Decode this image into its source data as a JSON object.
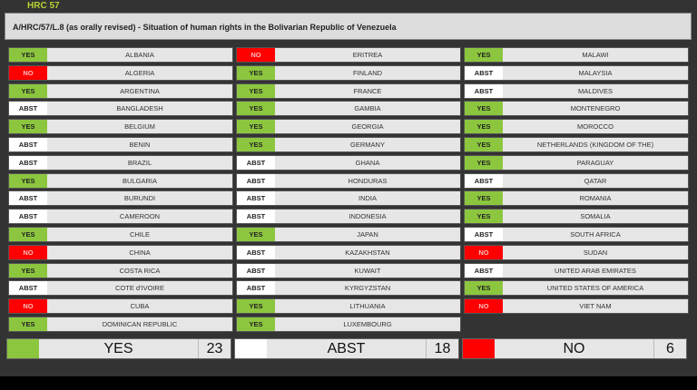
{
  "session": "HRC 57",
  "title": "A/HRC/57/L.8 (as orally revised) - Situation of human rights in the Bolivarian Republic of Venezuela",
  "colors": {
    "YES": "#8cc63f",
    "ABST": "#ffffff",
    "NO": "#ff0000"
  },
  "columns": [
    [
      [
        "YES",
        "ALBANIA"
      ],
      [
        "NO",
        "ALGERIA"
      ],
      [
        "YES",
        "ARGENTINA"
      ],
      [
        "ABST",
        "BANGLADESH"
      ],
      [
        "YES",
        "BELGIUM"
      ],
      [
        "ABST",
        "BENIN"
      ],
      [
        "ABST",
        "BRAZIL"
      ],
      [
        "YES",
        "BULGARIA"
      ],
      [
        "ABST",
        "BURUNDI"
      ],
      [
        "ABST",
        "CAMEROON"
      ],
      [
        "YES",
        "CHILE"
      ],
      [
        "NO",
        "CHINA"
      ],
      [
        "YES",
        "COSTA RICA"
      ],
      [
        "ABST",
        "COTE d'IVOIRE"
      ],
      [
        "NO",
        "CUBA"
      ],
      [
        "YES",
        "DOMINICAN REPUBLIC"
      ]
    ],
    [
      [
        "NO",
        "ERITREA"
      ],
      [
        "YES",
        "FINLAND"
      ],
      [
        "YES",
        "FRANCE"
      ],
      [
        "YES",
        "GAMBIA"
      ],
      [
        "YES",
        "GEORGIA"
      ],
      [
        "YES",
        "GERMANY"
      ],
      [
        "ABST",
        "GHANA"
      ],
      [
        "ABST",
        "HONDURAS"
      ],
      [
        "ABST",
        "INDIA"
      ],
      [
        "ABST",
        "INDONESIA"
      ],
      [
        "YES",
        "JAPAN"
      ],
      [
        "ABST",
        "KAZAKHSTAN"
      ],
      [
        "ABST",
        "KUWAIT"
      ],
      [
        "ABST",
        "KYRGYZSTAN"
      ],
      [
        "YES",
        "LITHUANIA"
      ],
      [
        "YES",
        "LUXEMBOURG"
      ]
    ],
    [
      [
        "YES",
        "MALAWI"
      ],
      [
        "ABST",
        "MALAYSIA"
      ],
      [
        "ABST",
        "MALDIVES"
      ],
      [
        "YES",
        "MONTENEGRO"
      ],
      [
        "YES",
        "MOROCCO"
      ],
      [
        "YES",
        "NETHERLANDS (KINGDOM OF THE)"
      ],
      [
        "YES",
        "PARAGUAY"
      ],
      [
        "ABST",
        "QATAR"
      ],
      [
        "YES",
        "ROMANIA"
      ],
      [
        "YES",
        "SOMALIA"
      ],
      [
        "ABST",
        "SOUTH AFRICA"
      ],
      [
        "NO",
        "SUDAN"
      ],
      [
        "ABST",
        "UNITED ARAB EMIRATES"
      ],
      [
        "YES",
        "UNITED STATES OF AMERICA"
      ],
      [
        "NO",
        "VIET NAM"
      ]
    ]
  ],
  "summary": [
    {
      "label": "YES",
      "count": "23"
    },
    {
      "label": "ABST",
      "count": "18"
    },
    {
      "label": "NO",
      "count": "6"
    }
  ]
}
